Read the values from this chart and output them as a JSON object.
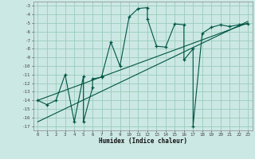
{
  "title": "",
  "xlabel": "Humidex (Indice chaleur)",
  "ylabel": "",
  "bg_color": "#cce8e4",
  "grid_color": "#99ccbb",
  "line_color": "#005544",
  "xlim": [
    -0.5,
    23.5
  ],
  "ylim": [
    -17.5,
    -2.5
  ],
  "xticks": [
    0,
    1,
    2,
    3,
    4,
    5,
    6,
    7,
    8,
    9,
    10,
    11,
    12,
    13,
    14,
    15,
    16,
    17,
    18,
    19,
    20,
    21,
    22,
    23
  ],
  "yticks": [
    -3,
    -4,
    -5,
    -6,
    -7,
    -8,
    -9,
    -10,
    -11,
    -12,
    -13,
    -14,
    -15,
    -16,
    -17
  ],
  "main_x": [
    0,
    1,
    2,
    3,
    4,
    5,
    5,
    6,
    6,
    7,
    7,
    8,
    9,
    10,
    11,
    12,
    12,
    13,
    14,
    15,
    16,
    16,
    17,
    17,
    18,
    19,
    20,
    21,
    22,
    23
  ],
  "main_y": [
    -14,
    -14.5,
    -14,
    -11,
    -16.5,
    -11.2,
    -16.5,
    -12.5,
    -11.5,
    -11.3,
    -11.2,
    -7.2,
    -10,
    -4.3,
    -3.3,
    -3.2,
    -4.5,
    -7.7,
    -7.8,
    -5.1,
    -5.2,
    -9.3,
    -8.0,
    -17.0,
    -6.2,
    -5.5,
    -5.2,
    -5.4,
    -5.2,
    -5.1
  ],
  "line1_x": [
    0,
    23
  ],
  "line1_y": [
    -14.0,
    -5.0
  ],
  "line2_x": [
    0,
    23
  ],
  "line2_y": [
    -16.5,
    -4.8
  ]
}
